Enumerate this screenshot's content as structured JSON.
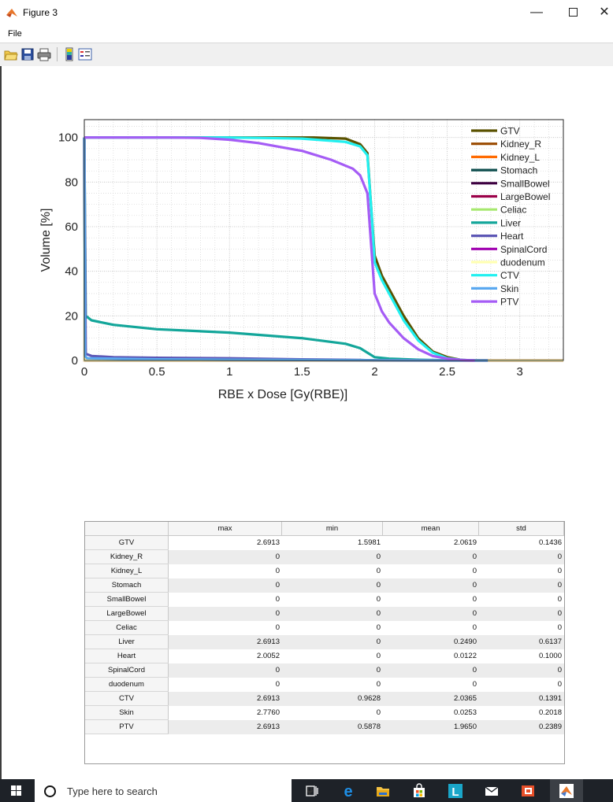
{
  "window": {
    "title": "Figure 3",
    "minimize_glyph": "—",
    "close_glyph": "✕"
  },
  "menu": {
    "file_label": "File"
  },
  "toolbar": {
    "icons": [
      "open-file-icon",
      "save-icon",
      "print-icon",
      "colorbar-icon",
      "legend-icon"
    ]
  },
  "taskbar": {
    "search_placeholder": "Type here to search",
    "icons": [
      "windows-start-icon",
      "search-icon",
      "microphone-icon",
      "task-view-icon",
      "edge-icon",
      "file-explorer-icon",
      "store-icon",
      "app-l-icon",
      "mail-icon",
      "office-icon",
      "matlab-icon"
    ]
  },
  "colors": {
    "GTV": "#5a5200",
    "Kidney_R": "#9a4a00",
    "Kidney_L": "#ff6a00",
    "Stomach": "#0e4d4d",
    "SmallBowel": "#3d0040",
    "LargeBowel": "#9b0048",
    "Celiac": "#a6e86e",
    "Liver": "#13a69a",
    "Heart": "#5c56b5",
    "SpinalCord": "#a000b0",
    "duodenum": "#ffffb2",
    "CTV": "#22f0f0",
    "Skin": "#5aa8f0",
    "PTV": "#a55cf5"
  },
  "chart_data": {
    "type": "line",
    "xlabel": "RBE x Dose [Gy(RBE)]",
    "ylabel": "Volume [%]",
    "xlim": [
      0,
      3.3
    ],
    "ylim": [
      0,
      108
    ],
    "xticks": [
      "0",
      "0.5",
      "1",
      "1.5",
      "2",
      "2.5",
      "3"
    ],
    "yticks": [
      "0",
      "20",
      "40",
      "60",
      "80",
      "100"
    ],
    "grid": "on (major and minor dotted)",
    "legend_position": "top-right",
    "legend": [
      "GTV",
      "Kidney_R",
      "Kidney_L",
      "Stomach",
      "SmallBowel",
      "LargeBowel",
      "Celiac",
      "Liver",
      "Heart",
      "SpinalCord",
      "duodenum",
      "CTV",
      "Skin",
      "PTV"
    ],
    "series": [
      {
        "name": "GTV",
        "x": [
          1.58,
          1.8,
          1.9,
          1.95,
          1.98,
          2.0,
          2.05,
          2.1,
          2.2,
          2.3,
          2.4,
          2.5,
          2.6,
          2.69
        ],
        "y": [
          100,
          99.5,
          97,
          93,
          65,
          47,
          38,
          32,
          20,
          10,
          4,
          1.5,
          0.2,
          0
        ]
      },
      {
        "name": "Kidney_R",
        "x": [
          0,
          0.001,
          3.3
        ],
        "y": [
          100,
          0,
          0
        ]
      },
      {
        "name": "Kidney_L",
        "x": [
          0,
          0.001,
          3.3
        ],
        "y": [
          100,
          0,
          0
        ]
      },
      {
        "name": "Stomach",
        "x": [
          0,
          0.001,
          3.3
        ],
        "y": [
          100,
          0,
          0
        ]
      },
      {
        "name": "SmallBowel",
        "x": [
          0,
          0.001,
          3.3
        ],
        "y": [
          100,
          0,
          0
        ]
      },
      {
        "name": "LargeBowel",
        "x": [
          0,
          0.001,
          3.3
        ],
        "y": [
          100,
          0,
          0
        ]
      },
      {
        "name": "Celiac",
        "x": [
          0,
          0.001,
          3.3
        ],
        "y": [
          100,
          0,
          0
        ]
      },
      {
        "name": "Liver",
        "x": [
          0,
          0.01,
          0.05,
          0.2,
          0.5,
          1.0,
          1.5,
          1.8,
          1.9,
          1.95,
          2.0,
          2.1,
          2.3,
          2.5,
          2.69
        ],
        "y": [
          100,
          20,
          18,
          16,
          14,
          12.5,
          10,
          7.5,
          5.5,
          3.5,
          1.5,
          0.8,
          0.3,
          0.1,
          0
        ]
      },
      {
        "name": "Heart",
        "x": [
          0,
          0.01,
          0.05,
          0.2,
          0.5,
          1.0,
          1.5,
          1.9,
          2.0
        ],
        "y": [
          100,
          3,
          2,
          1.5,
          1.2,
          1,
          0.5,
          0.2,
          0
        ]
      },
      {
        "name": "SpinalCord",
        "x": [
          0,
          0.001,
          3.3
        ],
        "y": [
          100,
          0,
          0
        ]
      },
      {
        "name": "duodenum",
        "x": [
          0,
          0.001,
          3.3
        ],
        "y": [
          100,
          0,
          0
        ]
      },
      {
        "name": "CTV",
        "x": [
          0.96,
          1.2,
          1.5,
          1.8,
          1.9,
          1.95,
          1.98,
          2.0,
          2.05,
          2.1,
          2.2,
          2.3,
          2.4,
          2.5,
          2.6,
          2.69
        ],
        "y": [
          100,
          99.8,
          99.5,
          98,
          96,
          92,
          65,
          44,
          36,
          30,
          18,
          9,
          3.5,
          1,
          0.2,
          0
        ]
      },
      {
        "name": "Skin",
        "x": [
          0,
          0.005,
          0.02,
          0.5,
          1.0,
          2.0,
          2.5,
          2.78
        ],
        "y": [
          100,
          2,
          1,
          0.5,
          0.3,
          0.1,
          0.05,
          0
        ]
      },
      {
        "name": "PTV",
        "x": [
          0.59,
          0.8,
          1.0,
          1.2,
          1.5,
          1.7,
          1.85,
          1.9,
          1.95,
          2.0,
          2.05,
          2.1,
          2.2,
          2.3,
          2.4,
          2.5,
          2.6,
          2.69
        ],
        "y": [
          100,
          99.8,
          99,
          97.5,
          94,
          90,
          86,
          83,
          75,
          30,
          22,
          17,
          10,
          5,
          2,
          0.8,
          0.2,
          0
        ]
      }
    ]
  },
  "stats_table": {
    "columns": [
      "max",
      "min",
      "mean",
      "std"
    ],
    "rows": [
      {
        "name": "GTV",
        "values": [
          "2.6913",
          "1.5981",
          "2.0619",
          "0.1436"
        ]
      },
      {
        "name": "Kidney_R",
        "values": [
          "0",
          "0",
          "0",
          "0"
        ]
      },
      {
        "name": "Kidney_L",
        "values": [
          "0",
          "0",
          "0",
          "0"
        ]
      },
      {
        "name": "Stomach",
        "values": [
          "0",
          "0",
          "0",
          "0"
        ]
      },
      {
        "name": "SmallBowel",
        "values": [
          "0",
          "0",
          "0",
          "0"
        ]
      },
      {
        "name": "LargeBowel",
        "values": [
          "0",
          "0",
          "0",
          "0"
        ]
      },
      {
        "name": "Celiac",
        "values": [
          "0",
          "0",
          "0",
          "0"
        ]
      },
      {
        "name": "Liver",
        "values": [
          "2.6913",
          "0",
          "0.2490",
          "0.6137"
        ]
      },
      {
        "name": "Heart",
        "values": [
          "2.0052",
          "0",
          "0.0122",
          "0.1000"
        ]
      },
      {
        "name": "SpinalCord",
        "values": [
          "0",
          "0",
          "0",
          "0"
        ]
      },
      {
        "name": "duodenum",
        "values": [
          "0",
          "0",
          "0",
          "0"
        ]
      },
      {
        "name": "CTV",
        "values": [
          "2.6913",
          "0.9628",
          "2.0365",
          "0.1391"
        ]
      },
      {
        "name": "Skin",
        "values": [
          "2.7760",
          "0",
          "0.0253",
          "0.2018"
        ]
      },
      {
        "name": "PTV",
        "values": [
          "2.6913",
          "0.5878",
          "1.9650",
          "0.2389"
        ]
      }
    ]
  }
}
